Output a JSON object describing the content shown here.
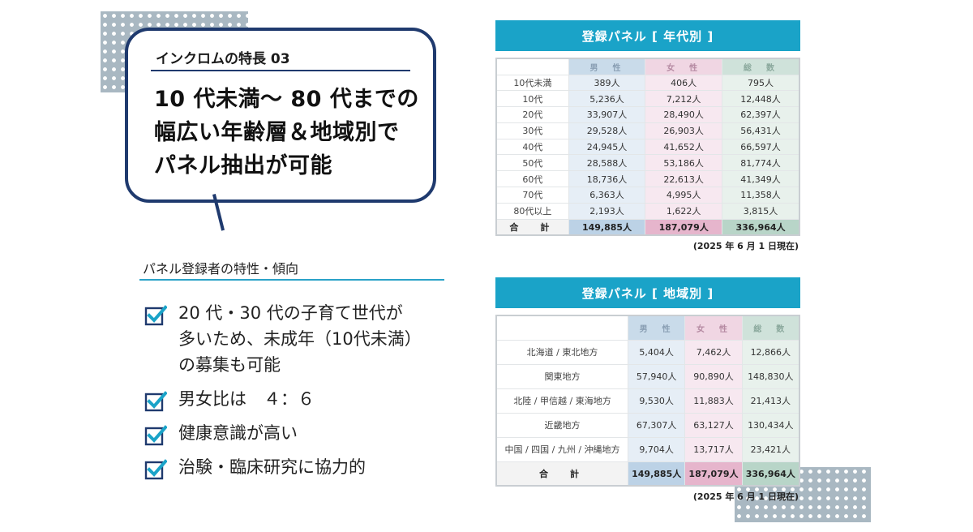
{
  "feature": {
    "label": "インクロムの特長  03",
    "headline": [
      "10 代未満～ 80 代までの",
      "幅広い年齢層＆地域別で",
      "パネル抽出が可能"
    ]
  },
  "traits": {
    "title": "パネル登録者の特性・傾向",
    "items": [
      "20 代・30 代の子育て世代が\n多いため、未成年（10代未満）\nの募集も可能",
      "男女比は　４：６",
      "健康意識が高い",
      "治験・臨床研究に協力的"
    ]
  },
  "age_panel": {
    "title": "登録パネル [ 年代別 ]",
    "headers": [
      "",
      "男　性",
      "女　性",
      "総　数"
    ],
    "rows": [
      [
        "10代未満",
        "389人",
        "406人",
        "795人"
      ],
      [
        "10代",
        "5,236人",
        "7,212人",
        "12,448人"
      ],
      [
        "20代",
        "33,907人",
        "28,490人",
        "62,397人"
      ],
      [
        "30代",
        "29,528人",
        "26,903人",
        "56,431人"
      ],
      [
        "40代",
        "24,945人",
        "41,652人",
        "66,597人"
      ],
      [
        "50代",
        "28,588人",
        "53,186人",
        "81,774人"
      ],
      [
        "60代",
        "18,736人",
        "22,613人",
        "41,349人"
      ],
      [
        "70代",
        "6,363人",
        "4,995人",
        "11,358人"
      ],
      [
        "80代以上",
        "2,193人",
        "1,622人",
        "3,815人"
      ]
    ],
    "total": [
      "合　計",
      "149,885人",
      "187,079人",
      "336,964人"
    ],
    "note": "(2025 年 6 月 1 日現在)"
  },
  "region_panel": {
    "title": "登録パネル [ 地域別 ]",
    "headers": [
      "",
      "男　性",
      "女　性",
      "総　数"
    ],
    "rows": [
      [
        "北海道 / 東北地方",
        "5,404人",
        "7,462人",
        "12,866人"
      ],
      [
        "関東地方",
        "57,940人",
        "90,890人",
        "148,830人"
      ],
      [
        "北陸 / 甲信越 / 東海地方",
        "9,530人",
        "11,883人",
        "21,413人"
      ],
      [
        "近畿地方",
        "67,307人",
        "63,127人",
        "130,434人"
      ],
      [
        "中国 / 四国 / 九州 / 沖縄地方",
        "9,704人",
        "13,717人",
        "23,421人"
      ]
    ],
    "total": [
      "合　計",
      "149,885人",
      "187,079人",
      "336,964人"
    ],
    "note": "(2025 年 6 月 1 日現在)"
  },
  "colors": {
    "navy": "#1f3a6e",
    "cyan": "#1aa3c8",
    "male": "#c9dbea",
    "female": "#f0d6e3",
    "total": "#cfe2da"
  },
  "icons": {
    "bullet": "check-box-icon"
  }
}
